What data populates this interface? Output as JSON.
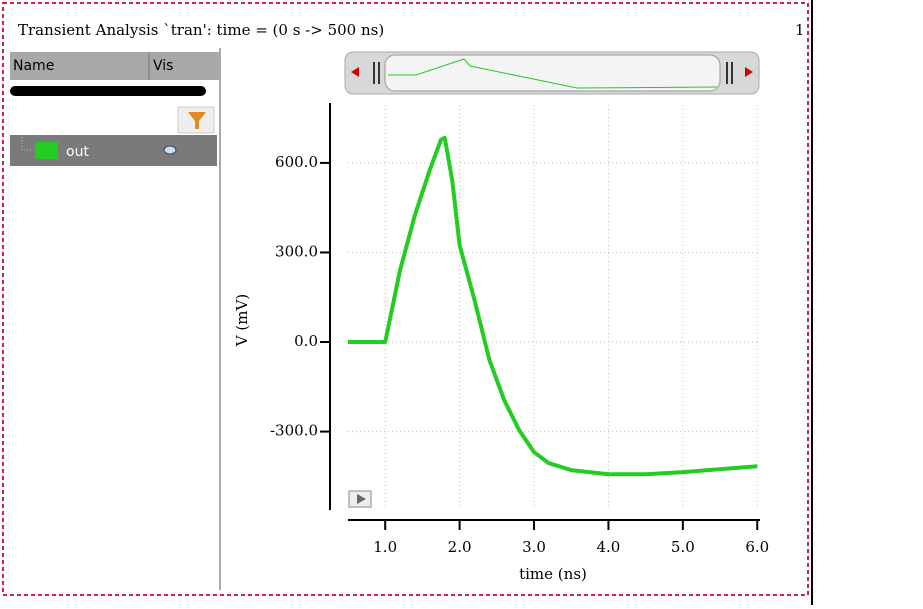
{
  "header": {
    "title": "Transient Analysis `tran': time = (0 s -> 500 ns)",
    "page_number": "1"
  },
  "signal_panel": {
    "columns": [
      "Name",
      "Vis"
    ]
  },
  "chart_data": {
    "type": "line",
    "x": [
      0.5,
      1.0,
      1.2,
      1.4,
      1.6,
      1.75,
      1.8,
      1.9,
      2.0,
      2.2,
      2.4,
      2.6,
      2.8,
      3.0,
      3.2,
      3.5,
      4.0,
      4.5,
      5.0,
      5.5,
      6.0
    ],
    "series": [
      {
        "name": "out",
        "color": "#22cc22",
        "values": [
          0,
          0,
          241,
          426,
          577,
          678,
          684,
          543,
          325,
          141,
          -60,
          -195,
          -295,
          -369,
          -406,
          -429,
          -443,
          -443,
          -436,
          -426,
          -416
        ]
      }
    ],
    "xlim": [
      0.5,
      6.01
    ],
    "ylim": [
      -556,
      794
    ],
    "xticks": [
      {
        "value": 1,
        "label": "1.0"
      },
      {
        "value": 2,
        "label": "2.0"
      },
      {
        "value": 3,
        "label": "3.0"
      },
      {
        "value": 4,
        "label": "4.0"
      },
      {
        "value": 5,
        "label": "5.0"
      },
      {
        "value": 6,
        "label": "6.0"
      }
    ],
    "yticks": [
      {
        "value": -300,
        "label": "-300.0"
      },
      {
        "value": 0,
        "label": "0.0"
      },
      {
        "value": 300,
        "label": "300.0"
      },
      {
        "value": 600,
        "label": "600.0"
      }
    ],
    "xlabel": "time (ns)",
    "ylabel": "V (mV)",
    "grid": true
  }
}
